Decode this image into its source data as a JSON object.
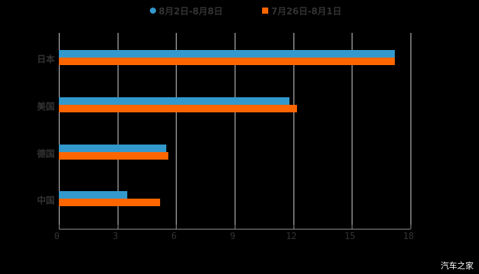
{
  "chart_data": {
    "type": "bar",
    "orientation": "horizontal",
    "categories": [
      "日本",
      "美国",
      "德国",
      "中国"
    ],
    "series": [
      {
        "name": "8月2日-8月8日",
        "color": "#3399CC",
        "values": [
          17.2,
          11.8,
          5.5,
          3.5
        ]
      },
      {
        "name": "7月26日-8月1日",
        "color": "#FF6600",
        "values": [
          17.2,
          12.2,
          5.6,
          5.2
        ]
      }
    ],
    "title": "",
    "xlabel": "",
    "ylabel": "",
    "xlim": [
      0,
      18
    ],
    "xticks": [
      "0",
      "3",
      "6",
      "9",
      "12",
      "15",
      "18"
    ],
    "grid": true,
    "legend_position": "top"
  },
  "legend": {
    "items": [
      {
        "label": "8月2日-8月8日",
        "color": "#3399CC",
        "marker": "circle"
      },
      {
        "label": "7月26日-8月1日",
        "color": "#FF6600",
        "marker": "square"
      }
    ]
  },
  "watermark": "汽车之家"
}
